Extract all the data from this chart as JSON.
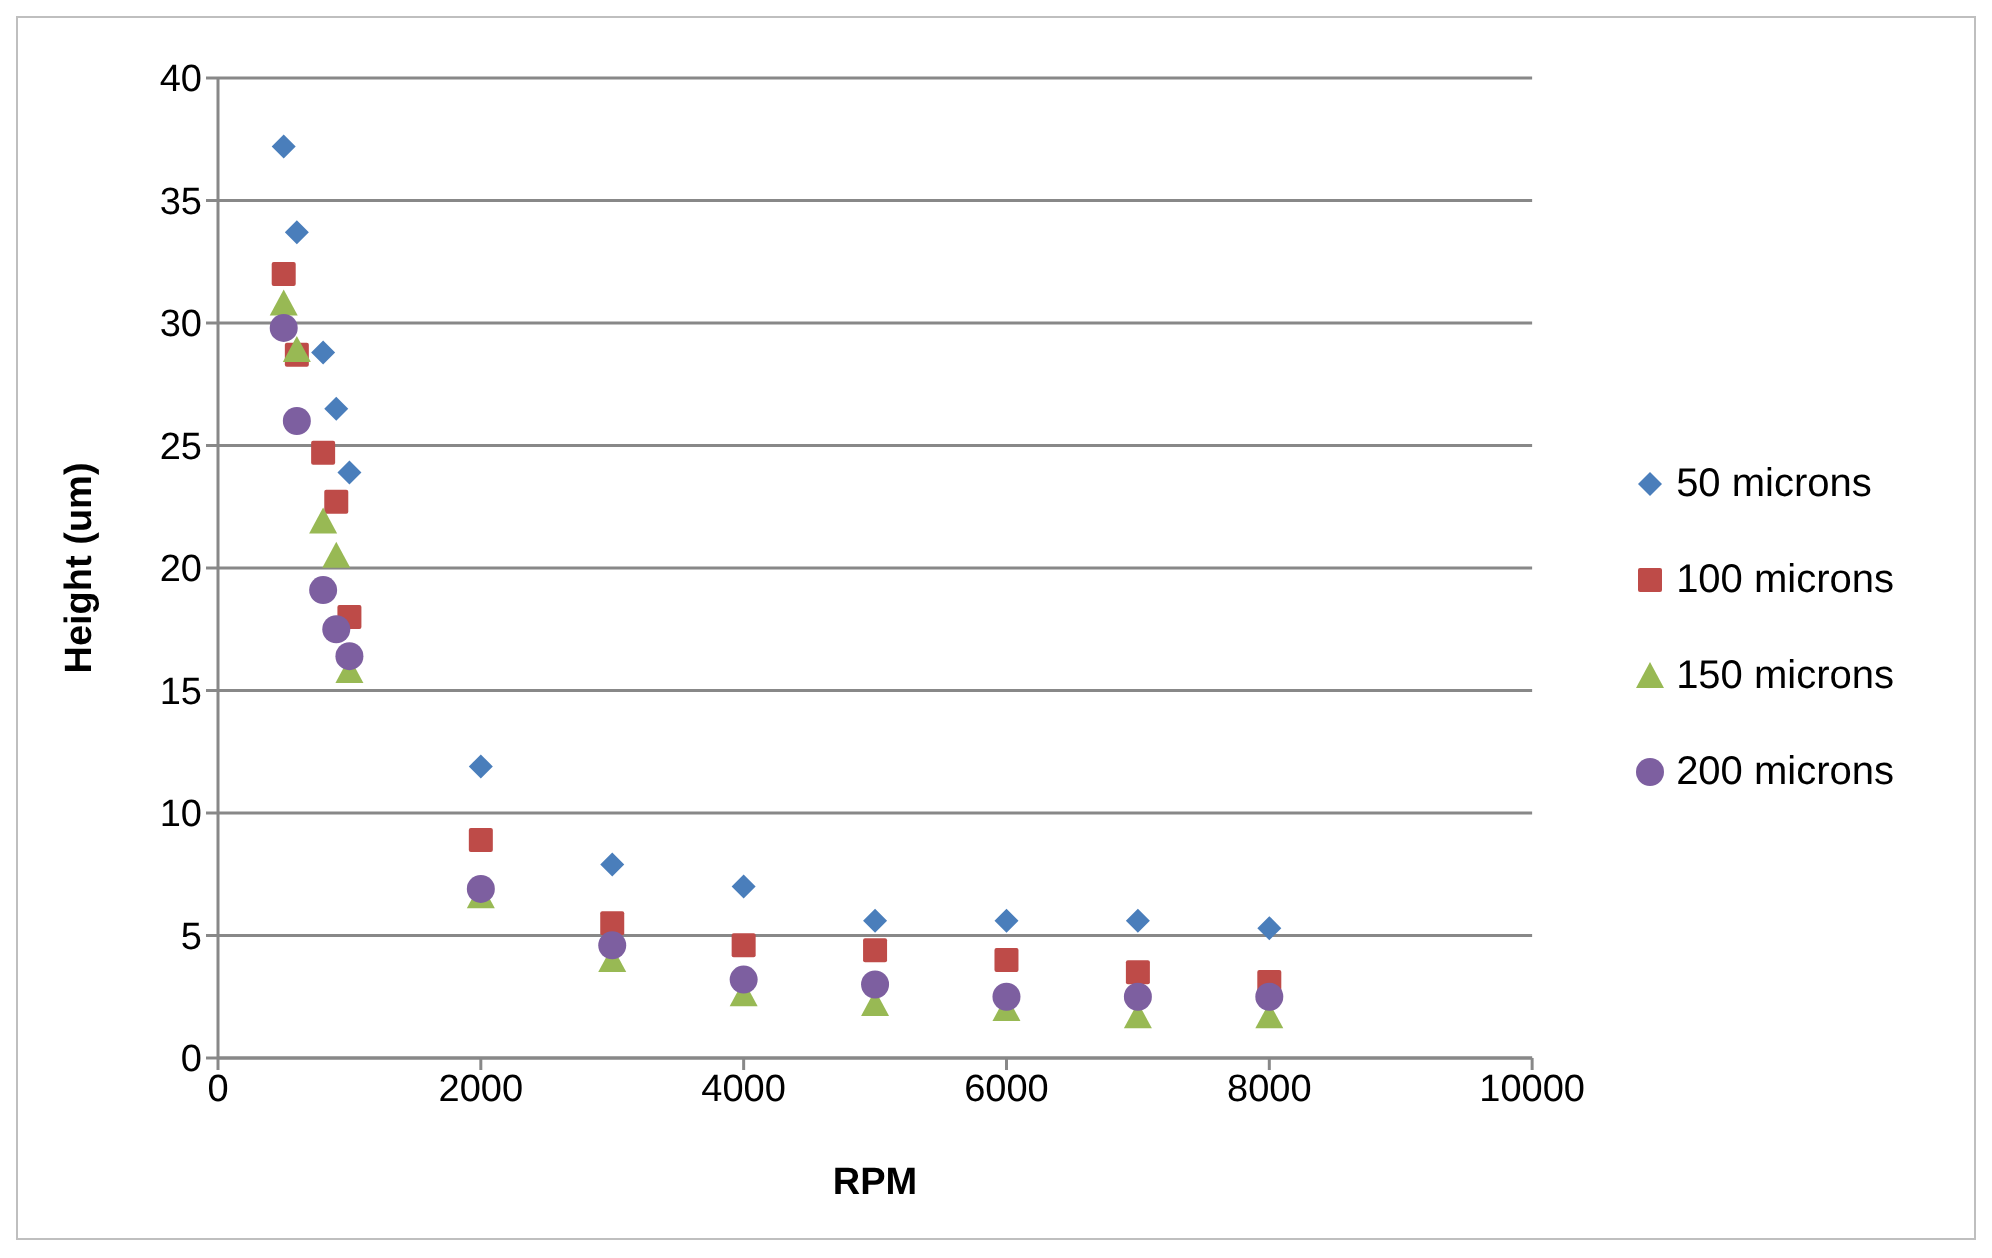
{
  "chart_data": {
    "type": "scatter",
    "xlabel": "RPM",
    "ylabel": "Height (um)",
    "xlim": [
      0,
      10000
    ],
    "xticks": [
      0,
      2000,
      4000,
      6000,
      8000,
      10000
    ],
    "ylim": [
      0,
      40
    ],
    "yticks": [
      0,
      5,
      10,
      15,
      20,
      25,
      30,
      35,
      40
    ],
    "grid": "y",
    "legend": "right",
    "x": [
      500,
      600,
      800,
      900,
      1000,
      2000,
      3000,
      4000,
      5000,
      6000,
      7000,
      8000
    ],
    "series": [
      {
        "name": "50 microns",
        "color": "#4a7ebb",
        "marker": "diamond",
        "values": [
          37.2,
          33.7,
          28.8,
          26.5,
          23.9,
          11.9,
          7.9,
          7.0,
          5.6,
          5.6,
          5.6,
          5.3
        ]
      },
      {
        "name": "100 microns",
        "color": "#be4b48",
        "marker": "square",
        "values": [
          32.0,
          28.7,
          24.7,
          22.7,
          18.0,
          8.9,
          5.5,
          4.6,
          4.4,
          4.0,
          3.5,
          3.1
        ]
      },
      {
        "name": "150 microns",
        "color": "#98b954",
        "marker": "triangle",
        "values": [
          30.8,
          28.9,
          21.9,
          20.5,
          15.8,
          6.6,
          4.0,
          2.6,
          2.2,
          2.0,
          1.7,
          1.7
        ]
      },
      {
        "name": "200 microns",
        "color": "#7d5fa0",
        "marker": "circle",
        "values": [
          29.8,
          26.0,
          19.1,
          17.5,
          16.4,
          6.9,
          4.6,
          3.2,
          3.0,
          2.5,
          2.5,
          2.5
        ]
      }
    ]
  }
}
